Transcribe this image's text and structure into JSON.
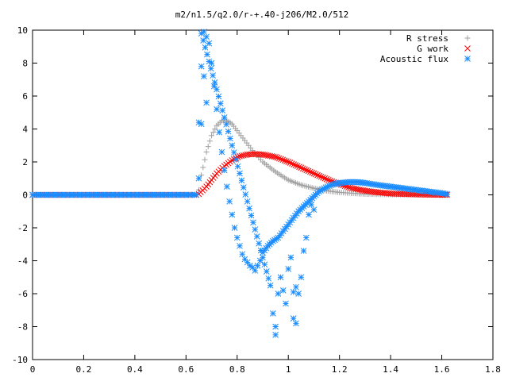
{
  "chart_data": {
    "type": "scatter",
    "title": "m2/n1.5/q2.0/r-+.40-j206/M2.0/512",
    "xlabel": "",
    "ylabel": "",
    "xlim": [
      0,
      1.8
    ],
    "ylim": [
      -10,
      10
    ],
    "x_ticks": [
      0,
      0.2,
      0.4,
      0.6,
      0.8,
      1,
      1.2,
      1.4,
      1.6,
      1.8
    ],
    "x_tick_labels": [
      "0",
      "0.2",
      "0.4",
      "0.6",
      "0.8",
      "1",
      "1.2",
      "1.4",
      "1.6",
      "1.8"
    ],
    "y_ticks": [
      -10,
      -8,
      -6,
      -4,
      -2,
      0,
      2,
      4,
      6,
      8,
      10
    ],
    "y_tick_labels": [
      "-10",
      "-8",
      "-6",
      "-4",
      "-2",
      "0",
      "2",
      "4",
      "6",
      "8",
      "10"
    ],
    "grid": false,
    "legend_position": "top-right",
    "series": [
      {
        "name": "R stress",
        "marker": "+",
        "color": "#a0a0a0",
        "x": [
          0.0,
          0.1,
          0.2,
          0.3,
          0.4,
          0.5,
          0.6,
          0.64,
          0.65,
          0.66,
          0.68,
          0.7,
          0.72,
          0.74,
          0.76,
          0.78,
          0.8,
          0.83,
          0.86,
          0.9,
          0.95,
          1.0,
          1.05,
          1.1,
          1.15,
          1.2,
          1.3,
          1.4,
          1.5,
          1.6,
          1.62
        ],
        "y": [
          0,
          0,
          0,
          0,
          0,
          0,
          0,
          0,
          0.3,
          1.2,
          2.6,
          3.6,
          4.2,
          4.5,
          4.5,
          4.3,
          3.9,
          3.3,
          2.7,
          2.0,
          1.4,
          0.9,
          0.6,
          0.4,
          0.25,
          0.15,
          0.05,
          0.02,
          0.01,
          0.0,
          0.0
        ]
      },
      {
        "name": "G work",
        "marker": "x",
        "color": "#ff0000",
        "x": [
          0.0,
          0.1,
          0.2,
          0.3,
          0.4,
          0.5,
          0.6,
          0.64,
          0.65,
          0.68,
          0.7,
          0.72,
          0.75,
          0.78,
          0.81,
          0.84,
          0.87,
          0.9,
          0.95,
          1.0,
          1.05,
          1.1,
          1.15,
          1.2,
          1.25,
          1.3,
          1.35,
          1.4,
          1.5,
          1.6,
          1.62
        ],
        "y": [
          0,
          0,
          0,
          0,
          0,
          0,
          0,
          0,
          0.05,
          0.5,
          0.9,
          1.3,
          1.75,
          2.1,
          2.35,
          2.45,
          2.48,
          2.45,
          2.3,
          2.0,
          1.65,
          1.3,
          0.95,
          0.65,
          0.4,
          0.25,
          0.15,
          0.08,
          0.03,
          0.0,
          0.0
        ]
      },
      {
        "name": "Acoustic flux",
        "marker": "*",
        "color": "#1a8cff",
        "x": [
          0.0,
          0.1,
          0.2,
          0.3,
          0.4,
          0.5,
          0.6,
          0.64,
          0.65,
          0.66,
          0.67,
          0.68,
          0.69,
          0.7,
          0.71,
          0.72,
          0.73,
          0.74,
          0.75,
          0.76,
          0.77,
          0.78,
          0.79,
          0.8,
          0.81,
          0.82,
          0.83,
          0.84,
          0.85,
          0.86,
          0.87,
          0.88,
          0.89,
          0.9,
          0.92,
          0.94,
          0.96,
          0.98,
          1.0,
          1.02,
          1.04,
          1.06,
          1.08,
          1.1,
          1.12,
          1.14,
          1.16,
          1.18,
          1.2,
          1.22,
          1.24,
          1.26,
          1.28,
          1.3,
          1.35,
          1.4,
          1.45,
          1.5,
          1.55,
          1.6,
          1.62,
          0.65,
          0.66,
          0.67,
          0.68,
          0.66,
          0.93,
          0.94,
          0.95,
          0.95,
          0.96,
          0.97,
          0.98,
          0.99,
          1.0,
          1.01,
          1.02,
          1.03,
          1.04,
          1.05,
          1.06,
          1.07,
          1.08,
          1.09,
          1.1,
          1.02,
          1.03
        ],
        "y": [
          0,
          0,
          0,
          0,
          0,
          0,
          0,
          0,
          1.0,
          4.3,
          9.9,
          9.6,
          9.2,
          8.0,
          6.6,
          5.2,
          3.8,
          2.6,
          1.5,
          0.5,
          -0.4,
          -1.2,
          -2.0,
          -2.6,
          -3.1,
          -3.6,
          -3.9,
          -4.1,
          -4.3,
          -4.4,
          -4.6,
          -4.3,
          -4.0,
          -3.5,
          -3.1,
          -2.8,
          -2.6,
          -2.2,
          -1.8,
          -1.4,
          -1.0,
          -0.7,
          -0.4,
          -0.1,
          0.2,
          0.4,
          0.55,
          0.65,
          0.72,
          0.75,
          0.78,
          0.78,
          0.76,
          0.72,
          0.6,
          0.5,
          0.4,
          0.3,
          0.2,
          0.1,
          0.05,
          4.4,
          7.8,
          7.2,
          5.6,
          9.8,
          -5.5,
          -7.2,
          -8.5,
          -8.0,
          -6.0,
          -5.0,
          -5.8,
          -6.6,
          -4.5,
          -3.8,
          -7.5,
          -7.8,
          -6.0,
          -5.0,
          -3.4,
          -2.6,
          -1.2,
          -0.6,
          -0.9,
          -5.9,
          -5.6
        ]
      }
    ]
  }
}
